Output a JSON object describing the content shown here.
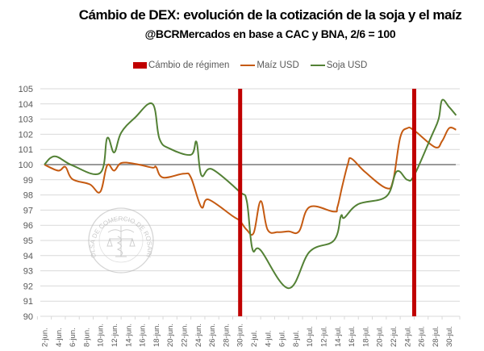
{
  "chart_data": {
    "type": "line",
    "title": "Cámbio de DEX: evolución de la cotización de la soja y el maíz",
    "subtitle": "@BCRMercados en base a CAC y BNA, 2/6 = 100",
    "xlabel": "",
    "ylabel": "",
    "ylim": [
      90,
      105
    ],
    "yticks": [
      90,
      91,
      92,
      93,
      94,
      95,
      96,
      97,
      98,
      99,
      100,
      101,
      102,
      103,
      104,
      105
    ],
    "xtick_labels": [
      "2-jun.",
      "4-jun.",
      "6-jun.",
      "8-jun.",
      "10-jun.",
      "12-jun.",
      "14-jun.",
      "16-jun.",
      "18-jun.",
      "20-jun.",
      "22-jun.",
      "24-jun.",
      "26-jun.",
      "28-jun.",
      "30-jun.",
      "2-jul.",
      "4-jul.",
      "6-jul.",
      "8-jul.",
      "10-jul.",
      "12-jul.",
      "14-jul.",
      "16-jul.",
      "18-jul.",
      "20-jul.",
      "22-jul.",
      "24-jul.",
      "26-jul.",
      "28-jul.",
      "30-jul."
    ],
    "x_unit": "days since 2-jun",
    "x_range": [
      0,
      59
    ],
    "grid": true,
    "legend_position": "top",
    "reference_line": {
      "value": 100,
      "color": "#8c8c8c"
    },
    "regime_changes": [
      {
        "label": "Cámbio de régimen",
        "day": 28,
        "date": "30-jun."
      },
      {
        "label": "Cámbio de régimen",
        "day": 53,
        "date": "25-jul."
      }
    ],
    "legend": [
      {
        "name": "Cámbio de régimen",
        "color": "#c00000",
        "kind": "box"
      },
      {
        "name": "Maíz USD",
        "color": "#c55a11",
        "kind": "line"
      },
      {
        "name": "Soja USD",
        "color": "#538135",
        "kind": "line"
      }
    ],
    "series": [
      {
        "name": "Maíz USD",
        "color": "#c55a11",
        "x": [
          0,
          2,
          3,
          4,
          6.5,
          8,
          9,
          10,
          11,
          13,
          15.5,
          16,
          17,
          20,
          21,
          22.5,
          23.5,
          27,
          28,
          29,
          30,
          31,
          32,
          33.5,
          35,
          36.5,
          38,
          41.5,
          42,
          42.7,
          43.5,
          44,
          46,
          49,
          50,
          51,
          52,
          53,
          56,
          57,
          58,
          59
        ],
        "values": [
          100,
          99.6,
          99.85,
          99.05,
          98.7,
          98.2,
          99.95,
          99.6,
          100.1,
          100.05,
          99.8,
          99.85,
          99.15,
          99.4,
          99.15,
          97.2,
          97.7,
          96.6,
          96.3,
          95.7,
          95.5,
          97.6,
          95.7,
          95.55,
          95.6,
          95.6,
          97.2,
          96.9,
          97.2,
          98.6,
          100.05,
          100.4,
          99.5,
          98.45,
          99.0,
          101.8,
          102.4,
          102.25,
          101.15,
          101.55,
          102.4,
          102.3
        ]
      },
      {
        "name": "Soja USD",
        "color": "#538135",
        "x": [
          0,
          1.5,
          4,
          8,
          9,
          10,
          11,
          13,
          15.5,
          16.5,
          18,
          21,
          21.8,
          22.5,
          24,
          28,
          29,
          29.8,
          31,
          35,
          38,
          41.5,
          42.5,
          43,
          45,
          49,
          50.5,
          52,
          53,
          55.5,
          56.5,
          57,
          58,
          59
        ],
        "values": [
          100,
          100.55,
          99.95,
          99.45,
          101.75,
          100.8,
          102.1,
          103.1,
          104.0,
          101.7,
          101.05,
          100.65,
          101.5,
          99.3,
          99.7,
          98.2,
          97.6,
          94.45,
          94.35,
          91.85,
          94.25,
          95.0,
          96.6,
          96.5,
          97.4,
          97.9,
          99.55,
          99.0,
          99.3,
          101.9,
          103.0,
          104.25,
          103.8,
          103.25
        ]
      }
    ]
  },
  "watermark": {
    "text": "BOLSA DE COMERCIO DE ROSARIO"
  }
}
